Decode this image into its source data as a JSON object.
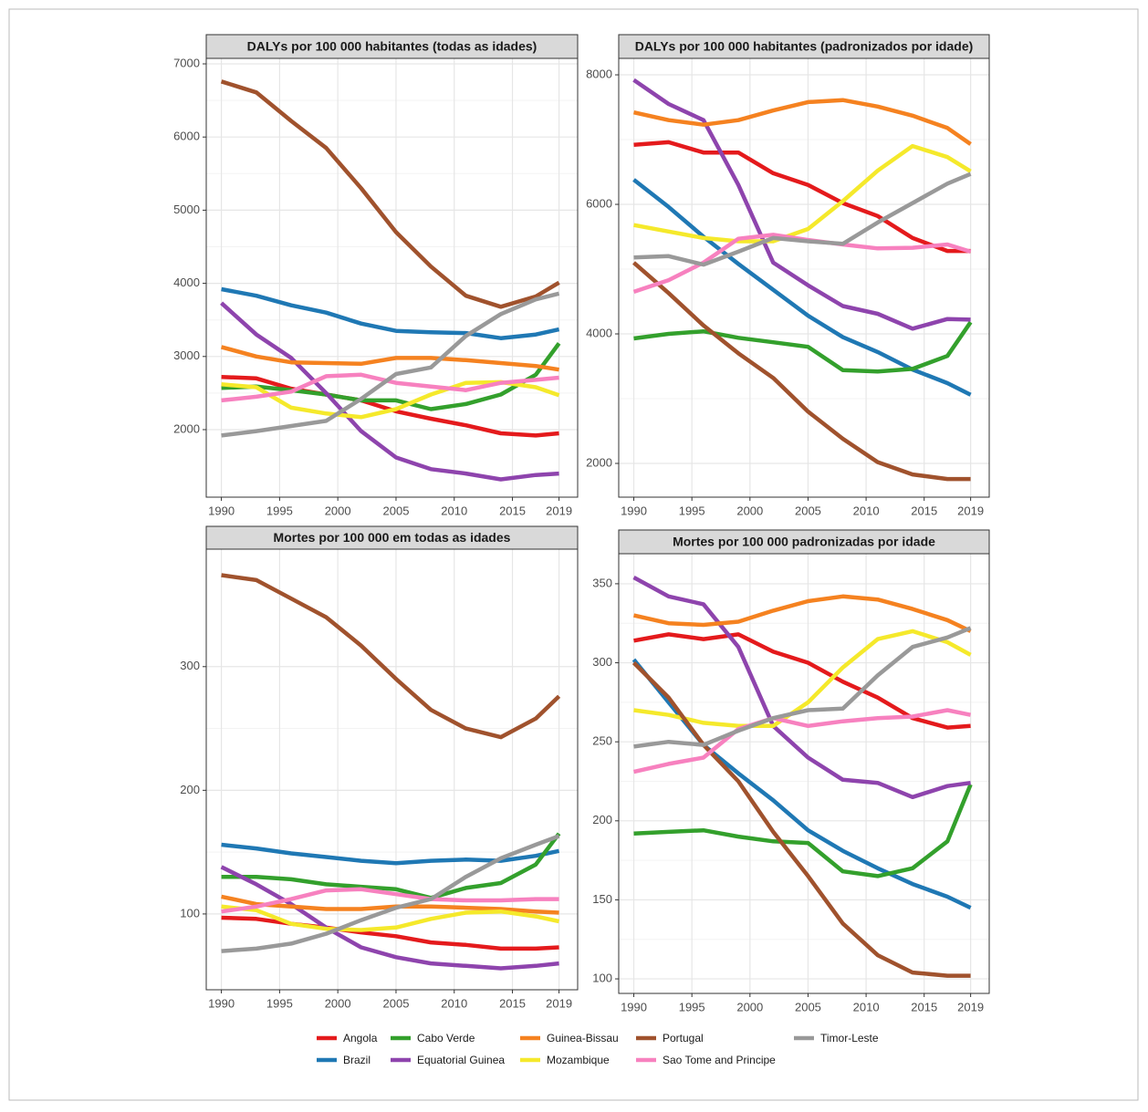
{
  "chart_data": [
    {
      "type": "line",
      "title": "DALYs por 100 000 habitantes (todas as idades)",
      "x": [
        1990,
        1993,
        1996,
        1999,
        2002,
        2005,
        2008,
        2011,
        2014,
        2017,
        2019
      ],
      "xlim": [
        1988.7,
        2020.6
      ],
      "xticks": [
        1990,
        1995,
        2000,
        2005,
        2010,
        2015,
        2019
      ],
      "ylim": [
        1077,
        7075
      ],
      "yticks": [
        2000,
        3000,
        4000,
        5000,
        6000,
        7000
      ],
      "grid": true,
      "series": [
        {
          "name": "Angola",
          "color": "#e41a1c",
          "values": [
            2720,
            2700,
            2560,
            2480,
            2400,
            2250,
            2150,
            2060,
            1950,
            1920,
            1950
          ]
        },
        {
          "name": "Brazil",
          "color": "#1f78b4",
          "values": [
            3920,
            3830,
            3700,
            3600,
            3450,
            3350,
            3330,
            3320,
            3250,
            3300,
            3370
          ]
        },
        {
          "name": "Cabo Verde",
          "color": "#33a02c",
          "values": [
            2570,
            2590,
            2540,
            2480,
            2400,
            2400,
            2280,
            2350,
            2480,
            2750,
            3180
          ]
        },
        {
          "name": "Equatorial Guinea",
          "color": "#8e44ad",
          "values": [
            3730,
            3300,
            2980,
            2500,
            1980,
            1620,
            1460,
            1400,
            1320,
            1380,
            1400
          ]
        },
        {
          "name": "Guinea-Bissau",
          "color": "#f58220",
          "values": [
            3130,
            3000,
            2920,
            2910,
            2900,
            2980,
            2980,
            2950,
            2910,
            2870,
            2820
          ]
        },
        {
          "name": "Mozambique",
          "color": "#f5e92b",
          "values": [
            2620,
            2580,
            2300,
            2220,
            2170,
            2280,
            2480,
            2640,
            2650,
            2580,
            2470
          ]
        },
        {
          "name": "Portugal",
          "color": "#a0522d",
          "values": [
            6760,
            6610,
            6220,
            5850,
            5300,
            4700,
            4230,
            3830,
            3680,
            3820,
            4010
          ]
        },
        {
          "name": "Sao Tome and Principe",
          "color": "#f781bf",
          "values": [
            2400,
            2450,
            2520,
            2730,
            2750,
            2640,
            2590,
            2540,
            2640,
            2680,
            2710
          ]
        },
        {
          "name": "Timor-Leste",
          "color": "#999999",
          "values": [
            1920,
            1980,
            2050,
            2120,
            2420,
            2760,
            2850,
            3280,
            3580,
            3780,
            3860
          ]
        }
      ]
    },
    {
      "type": "line",
      "title": "DALYs por 100 000 habitantes (padronizados por idade)",
      "x": [
        1990,
        1993,
        1996,
        1999,
        2002,
        2005,
        2008,
        2011,
        2014,
        2017,
        2019
      ],
      "xlim": [
        1988.7,
        2020.6
      ],
      "xticks": [
        1990,
        1995,
        2000,
        2005,
        2010,
        2015,
        2019
      ],
      "ylim": [
        1479,
        8254
      ],
      "yticks": [
        2000,
        4000,
        6000,
        8000
      ],
      "grid": true,
      "series": [
        {
          "name": "Angola",
          "color": "#e41a1c",
          "values": [
            6920,
            6960,
            6800,
            6800,
            6480,
            6300,
            6020,
            5820,
            5480,
            5280,
            5280
          ]
        },
        {
          "name": "Brazil",
          "color": "#1f78b4",
          "values": [
            6380,
            5960,
            5500,
            5080,
            4680,
            4280,
            3950,
            3720,
            3450,
            3240,
            3060
          ]
        },
        {
          "name": "Cabo Verde",
          "color": "#33a02c",
          "values": [
            3930,
            4000,
            4040,
            3940,
            3870,
            3800,
            3440,
            3420,
            3460,
            3660,
            4180
          ]
        },
        {
          "name": "Equatorial Guinea",
          "color": "#8e44ad",
          "values": [
            7920,
            7550,
            7300,
            6300,
            5100,
            4750,
            4430,
            4310,
            4080,
            4230,
            4220
          ]
        },
        {
          "name": "Guinea-Bissau",
          "color": "#f58220",
          "values": [
            7420,
            7300,
            7230,
            7300,
            7450,
            7580,
            7610,
            7510,
            7370,
            7180,
            6930
          ]
        },
        {
          "name": "Mozambique",
          "color": "#f5e92b",
          "values": [
            5680,
            5580,
            5480,
            5430,
            5430,
            5620,
            6050,
            6520,
            6900,
            6730,
            6510
          ]
        },
        {
          "name": "Portugal",
          "color": "#a0522d",
          "values": [
            5100,
            4630,
            4130,
            3700,
            3320,
            2800,
            2380,
            2020,
            1830,
            1760,
            1760
          ]
        },
        {
          "name": "Sao Tome and Principe",
          "color": "#f781bf",
          "values": [
            4650,
            4830,
            5100,
            5470,
            5530,
            5450,
            5380,
            5320,
            5330,
            5380,
            5270
          ]
        },
        {
          "name": "Timor-Leste",
          "color": "#999999",
          "values": [
            5180,
            5200,
            5070,
            5270,
            5480,
            5430,
            5390,
            5720,
            6020,
            6320,
            6470
          ]
        }
      ]
    },
    {
      "type": "line",
      "title": "Mortes por 100 000 em todas as idades",
      "x": [
        1990,
        1993,
        1996,
        1999,
        2002,
        2005,
        2008,
        2011,
        2014,
        2017,
        2019
      ],
      "xlim": [
        1988.7,
        2020.6
      ],
      "xticks": [
        1990,
        1995,
        2000,
        2005,
        2010,
        2015,
        2019
      ],
      "ylim": [
        38.7,
        395
      ],
      "yticks": [
        100,
        200,
        300
      ],
      "grid": true,
      "series": [
        {
          "name": "Angola",
          "color": "#e41a1c",
          "values": [
            97,
            96,
            92,
            89,
            85,
            82,
            77,
            75,
            72,
            72,
            73
          ]
        },
        {
          "name": "Brazil",
          "color": "#1f78b4",
          "values": [
            156,
            153,
            149,
            146,
            143,
            141,
            143,
            144,
            143,
            147,
            151
          ]
        },
        {
          "name": "Cabo Verde",
          "color": "#33a02c",
          "values": [
            130,
            130,
            128,
            124,
            122,
            120,
            113,
            121,
            125,
            140,
            165
          ]
        },
        {
          "name": "Equatorial Guinea",
          "color": "#8e44ad",
          "values": [
            138,
            124,
            108,
            89,
            73,
            65,
            60,
            58,
            56,
            58,
            60
          ]
        },
        {
          "name": "Guinea-Bissau",
          "color": "#f58220",
          "values": [
            114,
            108,
            106,
            104,
            104,
            106,
            106,
            105,
            104,
            102,
            101
          ]
        },
        {
          "name": "Mozambique",
          "color": "#f5e92b",
          "values": [
            106,
            103,
            92,
            88,
            87,
            89,
            96,
            101,
            102,
            98,
            94
          ]
        },
        {
          "name": "Portugal",
          "color": "#a0522d",
          "values": [
            374,
            370,
            355,
            340,
            317,
            290,
            265,
            250,
            243,
            258,
            276
          ]
        },
        {
          "name": "Sao Tome and Principe",
          "color": "#f781bf",
          "values": [
            102,
            106,
            112,
            119,
            120,
            116,
            112,
            111,
            111,
            112,
            112
          ]
        },
        {
          "name": "Timor-Leste",
          "color": "#999999",
          "values": [
            70,
            72,
            76,
            84,
            95,
            105,
            112,
            130,
            145,
            156,
            163
          ]
        }
      ]
    },
    {
      "type": "line",
      "title": "Mortes por 100 000 padronizadas por idade",
      "x": [
        1990,
        1993,
        1996,
        1999,
        2002,
        2005,
        2008,
        2011,
        2014,
        2017,
        2019
      ],
      "xlim": [
        1988.7,
        2020.6
      ],
      "xticks": [
        1990,
        1995,
        2000,
        2005,
        2010,
        2015,
        2019
      ],
      "ylim": [
        90.8,
        369
      ],
      "yticks": [
        100,
        150,
        200,
        250,
        300,
        350
      ],
      "grid": true,
      "series": [
        {
          "name": "Angola",
          "color": "#e41a1c",
          "values": [
            314,
            318,
            315,
            318,
            307,
            300,
            288,
            278,
            265,
            259,
            260
          ]
        },
        {
          "name": "Brazil",
          "color": "#1f78b4",
          "values": [
            302,
            275,
            248,
            230,
            213,
            194,
            181,
            170,
            160,
            152,
            145
          ]
        },
        {
          "name": "Cabo Verde",
          "color": "#33a02c",
          "values": [
            192,
            193,
            194,
            190,
            187,
            186,
            168,
            165,
            170,
            187,
            223
          ]
        },
        {
          "name": "Equatorial Guinea",
          "color": "#8e44ad",
          "values": [
            354,
            342,
            337,
            310,
            260,
            240,
            226,
            224,
            215,
            222,
            224
          ]
        },
        {
          "name": "Guinea-Bissau",
          "color": "#f58220",
          "values": [
            330,
            325,
            324,
            326,
            333,
            339,
            342,
            340,
            334,
            327,
            320
          ]
        },
        {
          "name": "Mozambique",
          "color": "#f5e92b",
          "values": [
            270,
            267,
            262,
            260,
            260,
            275,
            297,
            315,
            320,
            313,
            305
          ]
        },
        {
          "name": "Portugal",
          "color": "#a0522d",
          "values": [
            300,
            278,
            248,
            225,
            193,
            165,
            135,
            115,
            104,
            102,
            102
          ]
        },
        {
          "name": "Sao Tome and Principe",
          "color": "#f781bf",
          "values": [
            231,
            236,
            240,
            258,
            265,
            260,
            263,
            265,
            266,
            270,
            267
          ]
        },
        {
          "name": "Timor-Leste",
          "color": "#999999",
          "values": [
            247,
            250,
            248,
            257,
            265,
            270,
            271,
            292,
            310,
            316,
            322
          ]
        }
      ]
    }
  ]
}
